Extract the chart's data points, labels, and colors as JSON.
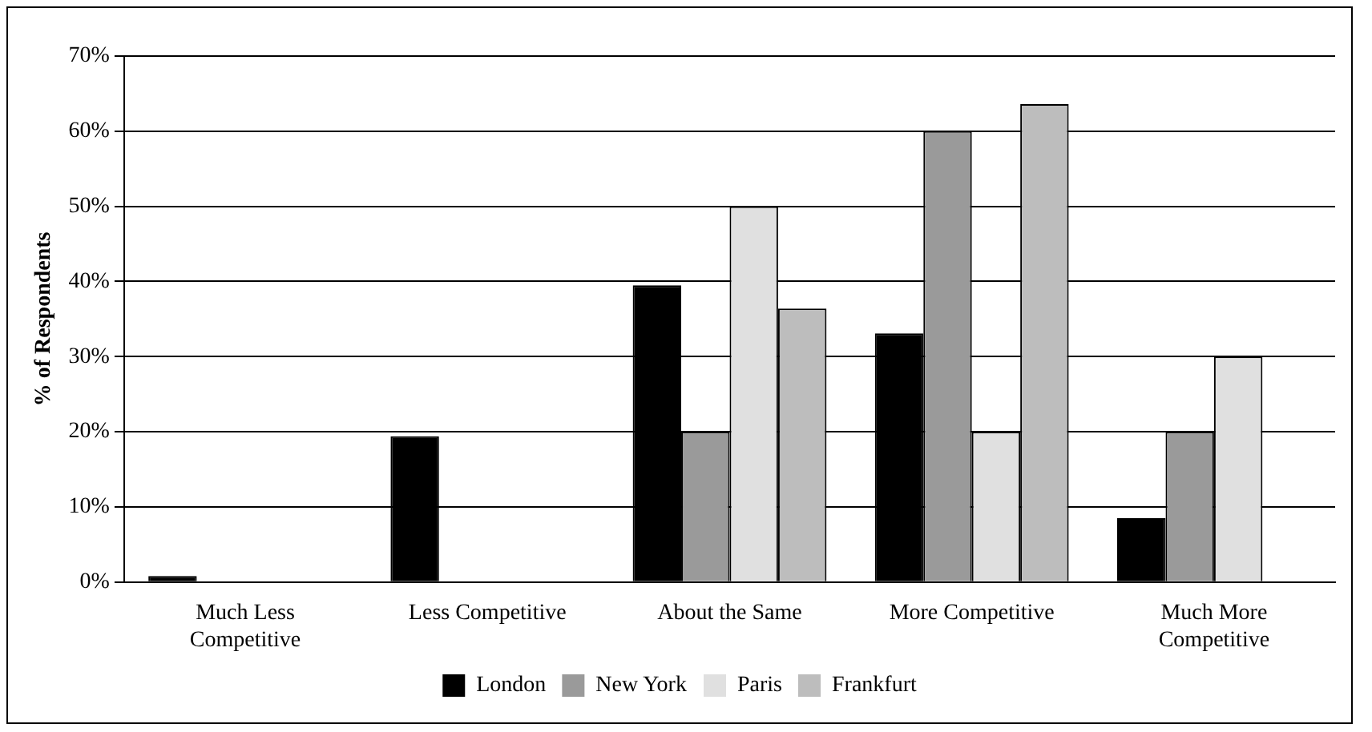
{
  "chart_data": {
    "type": "bar",
    "ylabel": "% of Respondents",
    "categories": [
      "Much Less Competitive",
      "Less Competitive",
      "About the Same",
      "More Competitive",
      "Much More Competitive"
    ],
    "series": [
      {
        "name": "London",
        "color": "#000000",
        "values": [
          0.8,
          19.4,
          39.5,
          33.1,
          8.5
        ]
      },
      {
        "name": "New York",
        "color": "#9a9a9a",
        "values": [
          0,
          0,
          20,
          60,
          20
        ]
      },
      {
        "name": "Paris",
        "color": "#e0e0e0",
        "values": [
          0,
          0,
          50,
          20,
          30
        ]
      },
      {
        "name": "Frankfurt",
        "color": "#bdbdbd",
        "values": [
          0,
          0,
          36.4,
          63.6,
          0
        ]
      }
    ],
    "ylim": [
      0,
      70
    ],
    "yticks": [
      {
        "value": 0,
        "label": "0%"
      },
      {
        "value": 10,
        "label": "10%"
      },
      {
        "value": 20,
        "label": "20%"
      },
      {
        "value": 30,
        "label": "30%"
      },
      {
        "value": 40,
        "label": "40%"
      },
      {
        "value": 50,
        "label": "50%"
      },
      {
        "value": 60,
        "label": "60%"
      },
      {
        "value": 70,
        "label": "70%"
      }
    ],
    "grid": "y",
    "legend": "bottom"
  }
}
